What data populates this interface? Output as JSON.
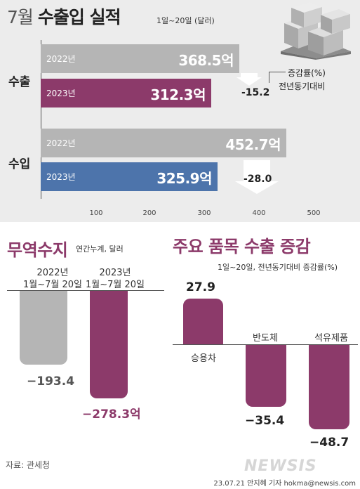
{
  "title_month": "7월",
  "title_rest": "수출입 실적",
  "subtitle": "1일~20일 (달러)",
  "colors": {
    "gray_bar": "#b5b5b5",
    "purple": "#8c3a6a",
    "blue": "#4d74ab",
    "panel": "#ececec"
  },
  "trade": {
    "export_label": "수출",
    "import_label": "수입",
    "legend_line1": "증감률(%)",
    "legend_line2": "전년동기대비",
    "x_ticks": [
      "100",
      "200",
      "300",
      "400",
      "500"
    ],
    "bars": {
      "export_2022": {
        "year": "2022년",
        "value_label": "368.5억"
      },
      "export_2023": {
        "year": "2023년",
        "value_label": "312.3억"
      },
      "import_2022": {
        "year": "2022년",
        "value_label": "452.7억"
      },
      "import_2023": {
        "year": "2023년",
        "value_label": "325.9억"
      }
    },
    "export_change": "-15.2",
    "import_change": "-28.0"
  },
  "balance": {
    "title": "무역수지",
    "unit": "연간누계, 달러",
    "bar1": {
      "line1": "2022년",
      "line2": "1월~7월 20일",
      "value_label": "−193.4"
    },
    "bar2": {
      "line1": "2023년",
      "line2": "1월~7월 20일",
      "value_label": "−278.3억"
    }
  },
  "items": {
    "title": "주요 품목 수출 증감",
    "subtitle": "1일~20일, 전년동기대비 증감률(%)",
    "car": {
      "label": "승용차",
      "value_label": "27.9"
    },
    "chip": {
      "label": "반도체",
      "value_label": "−35.4"
    },
    "petro": {
      "label": "석유제품",
      "value_label": "−48.7"
    }
  },
  "source": "자료: 관세청",
  "credit": "23.07.21 안지혜 기자 hokma@newsis.com",
  "watermark": "NEWSIS",
  "chart_data": [
    {
      "type": "bar",
      "title": "7월 수출입 실적",
      "subtitle": "1일~20일 (달러)",
      "categories": [
        "수출",
        "수입"
      ],
      "series": [
        {
          "name": "2022년",
          "values": [
            368.5,
            452.7
          ]
        },
        {
          "name": "2023년",
          "values": [
            312.3,
            325.9
          ]
        }
      ],
      "xlim": [
        0,
        540
      ],
      "x_ticks": [
        100,
        200,
        300,
        400,
        500
      ],
      "annotations": [
        "-15.2",
        "-28.0"
      ]
    },
    {
      "type": "bar",
      "title": "무역수지",
      "categories": [
        "2022년 1월~7월 20일",
        "2023년 1월~7월 20일"
      ],
      "values": [
        -193.4,
        -278.3
      ]
    },
    {
      "type": "bar",
      "title": "주요 품목 수출 증감",
      "categories": [
        "승용차",
        "반도체",
        "석유제품"
      ],
      "values": [
        27.9,
        -35.4,
        -48.7
      ]
    }
  ]
}
